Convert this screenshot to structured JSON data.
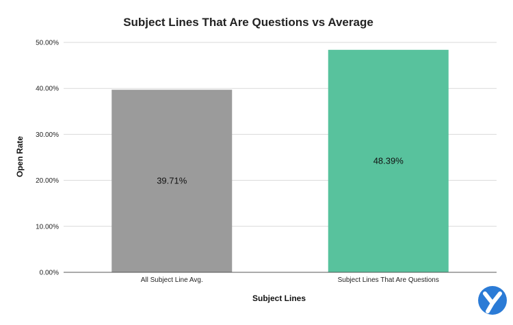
{
  "chart_data": {
    "type": "bar",
    "title": "Subject Lines That Are Questions vs Average",
    "xlabel": "Subject Lines",
    "ylabel": "Open Rate",
    "categories": [
      "All Subject Line Avg.",
      "Subject Lines That Are Questions"
    ],
    "values": [
      39.71,
      48.39
    ],
    "data_labels": [
      "39.71%",
      "48.39%"
    ],
    "bar_colors": [
      "#9b9b9b",
      "#58c29d"
    ],
    "ylim": [
      0,
      50
    ],
    "yticks": [
      0,
      10,
      20,
      30,
      40,
      50
    ],
    "ytick_labels": [
      "0.00%",
      "10.00%",
      "20.00%",
      "30.00%",
      "40.00%",
      "50.00%"
    ],
    "grid": true,
    "legend": "none"
  },
  "logo": {
    "name": "logo-icon",
    "color": "#2b7bd6"
  }
}
